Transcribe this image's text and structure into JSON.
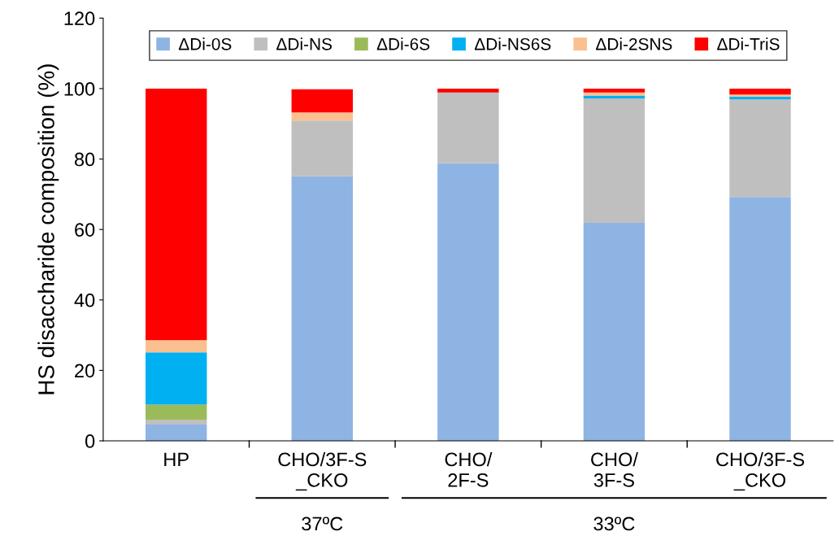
{
  "chart_data": {
    "type": "bar",
    "stacked": true,
    "ylabel": "HS disaccharide composition (%)",
    "categories": [
      "HP",
      "CHO/3F-S\n_CKO",
      "CHO/\n2F-S",
      "CHO/\n3F-S",
      "CHO/3F-S\n_CKO"
    ],
    "series": [
      {
        "name": "ΔDi-0S",
        "color": "#8eb4e3",
        "values": [
          4.6,
          75.1,
          78.8,
          61.9,
          69.2
        ]
      },
      {
        "name": "ΔDi-NS",
        "color": "#bfbfbf",
        "values": [
          1.4,
          15.8,
          20.1,
          35.3,
          27.7
        ]
      },
      {
        "name": "ΔDi-6S",
        "color": "#9bbb59",
        "values": [
          4.3,
          0,
          0,
          0,
          0
        ]
      },
      {
        "name": "ΔDi-NS6S",
        "color": "#00b0f0",
        "values": [
          14.8,
          null,
          0,
          0.8,
          0.8
        ]
      },
      {
        "name": "ΔDi-2SNS",
        "color": "#fac090",
        "values": [
          3.5,
          2.3,
          0,
          0.9,
          0.6
        ]
      },
      {
        "name": "ΔDi-TriS",
        "color": "#ff0000",
        "values": [
          71.4,
          6.6,
          1.1,
          1.1,
          1.7
        ]
      }
    ],
    "ylim": [
      0,
      120
    ],
    "yticks": [
      0,
      20,
      40,
      60,
      80,
      100,
      120
    ],
    "grid": false,
    "legend": "top",
    "annotations": [
      "37ºC",
      "33ºC"
    ]
  }
}
